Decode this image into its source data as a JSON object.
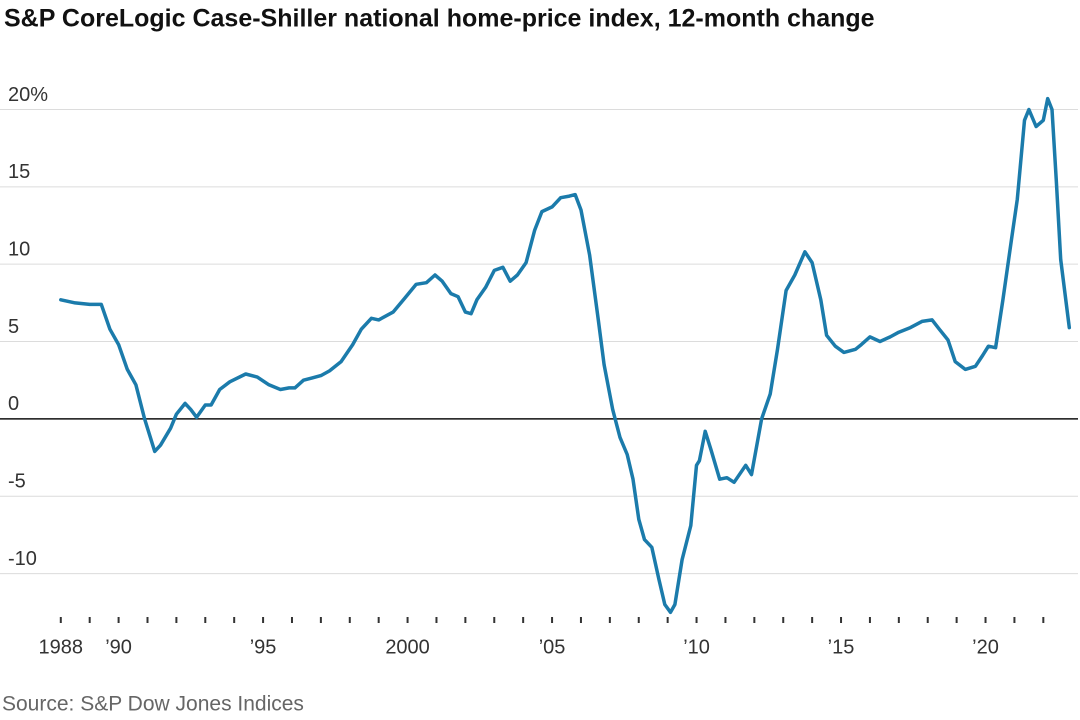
{
  "chart_data": {
    "type": "line",
    "title": "S&P CoreLogic Case-Shiller national home-price index, 12-month change",
    "source": "Source: S&P Dow Jones Indices",
    "xlim": [
      1986,
      2023.2
    ],
    "ylim": [
      -13,
      21
    ],
    "yticks": [
      {
        "value": 20,
        "label": "20%"
      },
      15,
      10,
      5,
      0,
      -5,
      -10
    ],
    "xticks": [
      {
        "value": 1988,
        "label": "1988"
      },
      {
        "value": 1990,
        "label": "’90"
      },
      {
        "value": 1995,
        "label": "’95"
      },
      {
        "value": 2000,
        "label": "2000"
      },
      {
        "value": 2005,
        "label": "’05"
      },
      {
        "value": 2010,
        "label": "’10"
      },
      {
        "value": 2015,
        "label": "’15"
      },
      {
        "value": 2020,
        "label": "’20"
      }
    ],
    "minor_xticks": [
      1988,
      1989,
      1990,
      1991,
      1992,
      1993,
      1994,
      1995,
      1996,
      1997,
      1998,
      1999,
      2000,
      2001,
      2002,
      2003,
      2004,
      2005,
      2006,
      2007,
      2008,
      2009,
      2010,
      2011,
      2012,
      2013,
      2014,
      2015,
      2016,
      2017,
      2018,
      2019,
      2020,
      2021,
      2022
    ],
    "grid": true,
    "series": [
      {
        "name": "12-month change",
        "color": "#1b7bab",
        "x": [
          1988.0,
          1988.5,
          1989.0,
          1989.4,
          1989.7,
          1990.0,
          1990.3,
          1990.6,
          1990.9,
          1991.25,
          1991.45,
          1991.8,
          1992.0,
          1992.3,
          1992.5,
          1992.7,
          1993.0,
          1993.2,
          1993.5,
          1993.85,
          1994.4,
          1994.8,
          1995.2,
          1995.6,
          1995.9,
          1996.1,
          1996.4,
          1996.7,
          1997.0,
          1997.3,
          1997.7,
          1998.1,
          1998.4,
          1998.75,
          1999.0,
          1999.5,
          1999.9,
          2000.3,
          2000.65,
          2000.95,
          2001.2,
          2001.5,
          2001.75,
          2002.0,
          2002.2,
          2002.4,
          2002.7,
          2003.0,
          2003.3,
          2003.55,
          2003.8,
          2004.1,
          2004.4,
          2004.65,
          2005.0,
          2005.3,
          2005.6,
          2005.8,
          2006.0,
          2006.3,
          2006.6,
          2006.8,
          2007.1,
          2007.35,
          2007.6,
          2007.8,
          2008.0,
          2008.2,
          2008.45,
          2008.7,
          2008.9,
          2009.1,
          2009.25,
          2009.5,
          2009.8,
          2010.0,
          2010.1,
          2010.3,
          2010.5,
          2010.8,
          2011.05,
          2011.3,
          2011.7,
          2011.9,
          2012.25,
          2012.55,
          2012.8,
          2013.1,
          2013.4,
          2013.75,
          2014.0,
          2014.3,
          2014.5,
          2014.8,
          2015.1,
          2015.5,
          2015.7,
          2016.0,
          2016.35,
          2016.7,
          2017.0,
          2017.4,
          2017.8,
          2018.15,
          2018.4,
          2018.7,
          2018.95,
          2019.3,
          2019.65,
          2019.9,
          2020.1,
          2020.35,
          2020.6,
          2020.9,
          2021.1,
          2021.35,
          2021.5,
          2021.75,
          2022.0,
          2022.15,
          2022.3,
          2022.45,
          2022.6,
          2022.9
        ],
        "values": [
          7.7,
          7.5,
          7.4,
          7.4,
          5.8,
          4.8,
          3.2,
          2.2,
          0.0,
          -2.1,
          -1.7,
          -0.6,
          0.3,
          1.0,
          0.6,
          0.1,
          0.9,
          0.9,
          1.9,
          2.4,
          2.9,
          2.7,
          2.2,
          1.9,
          2.0,
          2.0,
          2.5,
          2.65,
          2.8,
          3.1,
          3.7,
          4.8,
          5.8,
          6.5,
          6.4,
          6.9,
          7.8,
          8.7,
          8.8,
          9.3,
          8.9,
          8.1,
          7.9,
          6.9,
          6.8,
          7.7,
          8.5,
          9.6,
          9.8,
          8.9,
          9.3,
          10.1,
          12.2,
          13.4,
          13.7,
          14.3,
          14.4,
          14.5,
          13.5,
          10.6,
          6.4,
          3.5,
          0.6,
          -1.2,
          -2.3,
          -3.9,
          -6.5,
          -7.8,
          -8.3,
          -10.4,
          -12.0,
          -12.5,
          -12.0,
          -9.1,
          -6.9,
          -3.0,
          -2.7,
          -0.8,
          -2.0,
          -3.9,
          -3.8,
          -4.1,
          -3.0,
          -3.6,
          0.0,
          1.6,
          4.5,
          8.3,
          9.3,
          10.8,
          10.1,
          7.7,
          5.4,
          4.7,
          4.3,
          4.5,
          4.8,
          5.3,
          5.0,
          5.3,
          5.6,
          5.9,
          6.3,
          6.4,
          5.8,
          5.1,
          3.7,
          3.2,
          3.4,
          4.1,
          4.7,
          4.6,
          7.7,
          11.6,
          14.2,
          19.3,
          20.0,
          18.9,
          19.3,
          20.7,
          20.0,
          15.4,
          10.3,
          5.9
        ]
      }
    ]
  }
}
